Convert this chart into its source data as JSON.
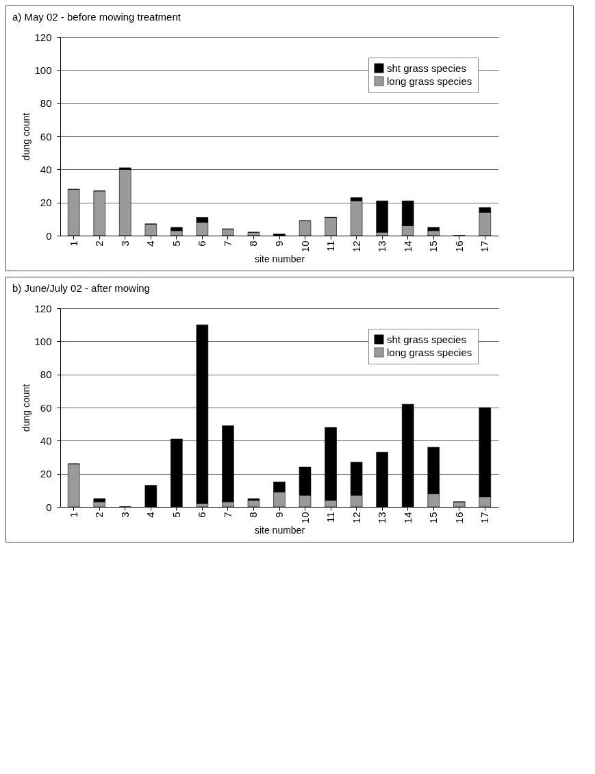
{
  "chart_data": [
    {
      "type": "bar",
      "title": "a) May 02 - before mowing treatment",
      "xlabel": "site number",
      "ylabel": "dung count",
      "categories": [
        "1",
        "2",
        "3",
        "4",
        "5",
        "6",
        "7",
        "8",
        "9",
        "10",
        "11",
        "12",
        "13",
        "14",
        "15",
        "16",
        "17"
      ],
      "stacked": true,
      "ylim": [
        0,
        120
      ],
      "yticks": [
        0,
        20,
        40,
        60,
        80,
        100,
        120
      ],
      "grid": "y",
      "legend": "top right",
      "series": [
        {
          "name": "long grass species",
          "color": "#9a9a9a",
          "values": [
            28,
            27,
            40,
            7,
            3,
            8,
            4,
            2,
            0,
            9,
            11,
            21,
            2,
            6,
            3,
            0,
            14
          ]
        },
        {
          "name": "sht grass species",
          "color": "#000000",
          "values": [
            0,
            0,
            1,
            0,
            2,
            3,
            0,
            0,
            1,
            0,
            0,
            2,
            19,
            15,
            2,
            0,
            3
          ]
        }
      ]
    },
    {
      "type": "bar",
      "title": "b) June/July 02 - after mowing",
      "xlabel": "site number",
      "ylabel": "dung count",
      "categories": [
        "1",
        "2",
        "3",
        "4",
        "5",
        "6",
        "7",
        "8",
        "9",
        "10",
        "11",
        "12",
        "13",
        "14",
        "15",
        "16",
        "17"
      ],
      "stacked": true,
      "ylim": [
        0,
        120
      ],
      "yticks": [
        0,
        20,
        40,
        60,
        80,
        100,
        120
      ],
      "grid": "y",
      "legend": "top right",
      "series": [
        {
          "name": "long grass species",
          "color": "#9a9a9a",
          "values": [
            26,
            3,
            0,
            0,
            0,
            2,
            3,
            4,
            9,
            7,
            4,
            7,
            0,
            0,
            8,
            3,
            6
          ]
        },
        {
          "name": "sht grass species",
          "color": "#000000",
          "values": [
            0,
            2,
            0,
            13,
            41,
            108,
            46,
            1,
            6,
            17,
            44,
            20,
            33,
            62,
            28,
            0,
            54
          ]
        }
      ]
    }
  ]
}
